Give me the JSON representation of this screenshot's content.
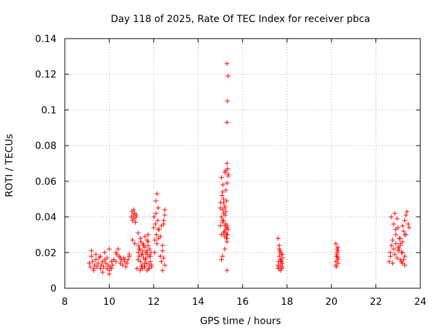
{
  "chart_data": {
    "type": "scatter",
    "title": "Day 118 of 2025, Rate Of TEC Index for receiver pbca",
    "xlabel": "GPS time / hours",
    "ylabel": "ROTI / TECUs",
    "xlim": [
      8,
      24
    ],
    "ylim": [
      0,
      0.14
    ],
    "xticks": [
      8,
      10,
      12,
      14,
      16,
      18,
      20,
      22,
      24
    ],
    "yticks": [
      0,
      0.02,
      0.04,
      0.06,
      0.08,
      0.1,
      0.12,
      0.14
    ],
    "ytick_labels": [
      "0",
      "0.02",
      "0.04",
      "0.06",
      "0.08",
      "0.1",
      "0.12",
      "0.14"
    ],
    "grid": true,
    "marker": "+",
    "series": [
      {
        "name": "ROTI",
        "color": "#ff0000",
        "x": [
          9.1,
          9.15,
          9.2,
          9.25,
          9.3,
          9.35,
          9.4,
          9.45,
          9.5,
          9.55,
          9.6,
          9.65,
          9.7,
          9.75,
          9.8,
          9.85,
          9.9,
          9.95,
          10.0,
          10.05,
          10.1,
          10.15,
          10.2,
          9.2,
          9.4,
          9.6,
          9.8,
          10.0,
          9.3,
          9.7,
          9.9,
          10.0,
          10.1,
          10.3,
          10.35,
          10.4,
          10.45,
          10.5,
          10.55,
          10.6,
          10.65,
          10.7,
          10.75,
          10.8,
          10.85,
          10.9,
          10.3,
          10.5,
          10.7,
          10.9,
          11.0,
          11.02,
          11.05,
          11.08,
          11.1,
          11.12,
          11.15,
          11.18,
          11.2,
          11.22,
          11.05,
          11.15,
          11.25,
          11.3,
          11.32,
          11.35,
          11.38,
          11.4,
          11.42,
          11.45,
          11.48,
          11.5,
          11.52,
          11.55,
          11.58,
          11.6,
          11.62,
          11.65,
          11.68,
          11.7,
          11.72,
          11.75,
          11.78,
          11.8,
          11.82,
          11.85,
          11.88,
          11.9,
          11.3,
          11.35,
          11.4,
          11.45,
          11.5,
          11.55,
          11.6,
          11.65,
          11.7,
          11.75,
          11.8,
          11.85,
          11.4,
          11.5,
          11.6,
          11.7,
          11.8,
          11.9,
          11.3,
          11.6,
          11.75,
          12.0,
          12.02,
          12.05,
          12.08,
          12.1,
          12.12,
          12.15,
          12.18,
          12.2,
          12.22,
          12.1,
          12.15,
          12.2,
          12.05,
          12.25,
          12.3,
          12.35,
          12.4,
          12.45,
          12.5,
          12.3,
          12.35,
          12.4,
          12.45,
          12.5,
          12.5,
          12.45,
          12.4,
          15.0,
          15.02,
          15.05,
          15.08,
          15.1,
          15.12,
          15.15,
          15.18,
          15.2,
          15.22,
          15.25,
          15.28,
          15.3,
          15.32,
          15.35,
          15.05,
          15.1,
          15.15,
          15.2,
          15.25,
          15.3,
          15.35,
          15.0,
          15.05,
          15.1,
          15.15,
          15.2,
          15.25,
          15.3,
          15.2,
          15.25,
          15.3,
          15.3,
          15.32,
          15.35,
          15.3,
          15.1,
          15.2,
          15.3,
          15.05,
          15.15,
          15.25,
          15.1,
          15.15,
          15.2,
          15.25,
          15.3,
          15.3,
          15.33,
          15.35,
          15.28,
          15.31,
          17.6,
          17.62,
          17.65,
          17.68,
          17.7,
          17.72,
          17.75,
          17.78,
          17.8,
          17.65,
          17.7,
          17.75,
          17.6,
          17.8,
          17.7,
          17.65,
          17.75,
          17.6,
          17.7,
          17.8,
          17.62,
          20.2,
          20.22,
          20.25,
          20.28,
          20.3,
          20.2,
          20.25,
          20.3,
          20.22,
          20.28,
          20.25,
          20.2,
          20.3,
          20.25,
          22.6,
          22.65,
          22.7,
          22.75,
          22.8,
          22.85,
          22.9,
          22.95,
          23.0,
          23.05,
          23.1,
          23.15,
          23.2,
          23.25,
          23.3,
          23.35,
          23.4,
          22.7,
          22.8,
          22.9,
          23.0,
          23.1,
          23.2,
          23.3,
          23.05,
          23.1,
          23.15,
          23.2,
          23.25,
          23.3,
          23.35,
          22.9,
          23.0,
          22.85,
          22.95,
          23.1,
          23.2,
          23.3,
          22.75,
          22.65
        ],
        "y": [
          0.014,
          0.012,
          0.018,
          0.015,
          0.011,
          0.013,
          0.016,
          0.012,
          0.014,
          0.017,
          0.011,
          0.013,
          0.015,
          0.012,
          0.016,
          0.014,
          0.011,
          0.013,
          0.008,
          0.012,
          0.015,
          0.013,
          0.016,
          0.021,
          0.019,
          0.018,
          0.02,
          0.022,
          0.01,
          0.009,
          0.017,
          0.01,
          0.011,
          0.015,
          0.019,
          0.022,
          0.018,
          0.014,
          0.016,
          0.013,
          0.017,
          0.015,
          0.012,
          0.014,
          0.016,
          0.018,
          0.02,
          0.017,
          0.016,
          0.019,
          0.04,
          0.043,
          0.038,
          0.041,
          0.044,
          0.039,
          0.042,
          0.037,
          0.04,
          0.041,
          0.027,
          0.025,
          0.011,
          0.02,
          0.024,
          0.018,
          0.022,
          0.015,
          0.026,
          0.019,
          0.013,
          0.021,
          0.025,
          0.017,
          0.012,
          0.023,
          0.016,
          0.02,
          0.014,
          0.027,
          0.019,
          0.024,
          0.011,
          0.018,
          0.022,
          0.015,
          0.02,
          0.013,
          0.016,
          0.022,
          0.028,
          0.012,
          0.019,
          0.024,
          0.014,
          0.017,
          0.021,
          0.026,
          0.013,
          0.018,
          0.01,
          0.011,
          0.012,
          0.01,
          0.011,
          0.012,
          0.031,
          0.029,
          0.03,
          0.034,
          0.04,
          0.027,
          0.036,
          0.042,
          0.03,
          0.025,
          0.038,
          0.033,
          0.028,
          0.049,
          0.053,
          0.045,
          0.02,
          0.033,
          0.029,
          0.035,
          0.024,
          0.038,
          0.041,
          0.018,
          0.015,
          0.021,
          0.017,
          0.013,
          0.044,
          0.036,
          0.01,
          0.035,
          0.048,
          0.03,
          0.052,
          0.044,
          0.058,
          0.038,
          0.032,
          0.046,
          0.041,
          0.036,
          0.028,
          0.034,
          0.03,
          0.033,
          0.062,
          0.054,
          0.05,
          0.065,
          0.055,
          0.059,
          0.064,
          0.045,
          0.04,
          0.037,
          0.042,
          0.029,
          0.031,
          0.026,
          0.045,
          0.066,
          0.07,
          0.093,
          0.105,
          0.119,
          0.126,
          0.018,
          0.022,
          0.01,
          0.016,
          0.048,
          0.043,
          0.038,
          0.031,
          0.035,
          0.033,
          0.028,
          0.03,
          0.067,
          0.063,
          0.049,
          0.035,
          0.012,
          0.015,
          0.018,
          0.02,
          0.013,
          0.016,
          0.011,
          0.014,
          0.017,
          0.024,
          0.021,
          0.019,
          0.028,
          0.012,
          0.01,
          0.022,
          0.015,
          0.013,
          0.016,
          0.019,
          0.011,
          0.013,
          0.018,
          0.022,
          0.016,
          0.014,
          0.025,
          0.02,
          0.017,
          0.012,
          0.023,
          0.019,
          0.015,
          0.021,
          0.018,
          0.015,
          0.02,
          0.024,
          0.027,
          0.022,
          0.019,
          0.025,
          0.017,
          0.021,
          0.028,
          0.024,
          0.02,
          0.035,
          0.032,
          0.038,
          0.041,
          0.043,
          0.04,
          0.036,
          0.03,
          0.023,
          0.025,
          0.026,
          0.018,
          0.022,
          0.016,
          0.015,
          0.014,
          0.016,
          0.013,
          0.03,
          0.033,
          0.034,
          0.042,
          0.039,
          0.028,
          0.02,
          0.03,
          0.014,
          0.018
        ],
        "overflow_marks": [
          {
            "x": 23.5,
            "y": 0.034
          },
          {
            "x": 23.45,
            "y": 0.036
          }
        ]
      }
    ]
  }
}
